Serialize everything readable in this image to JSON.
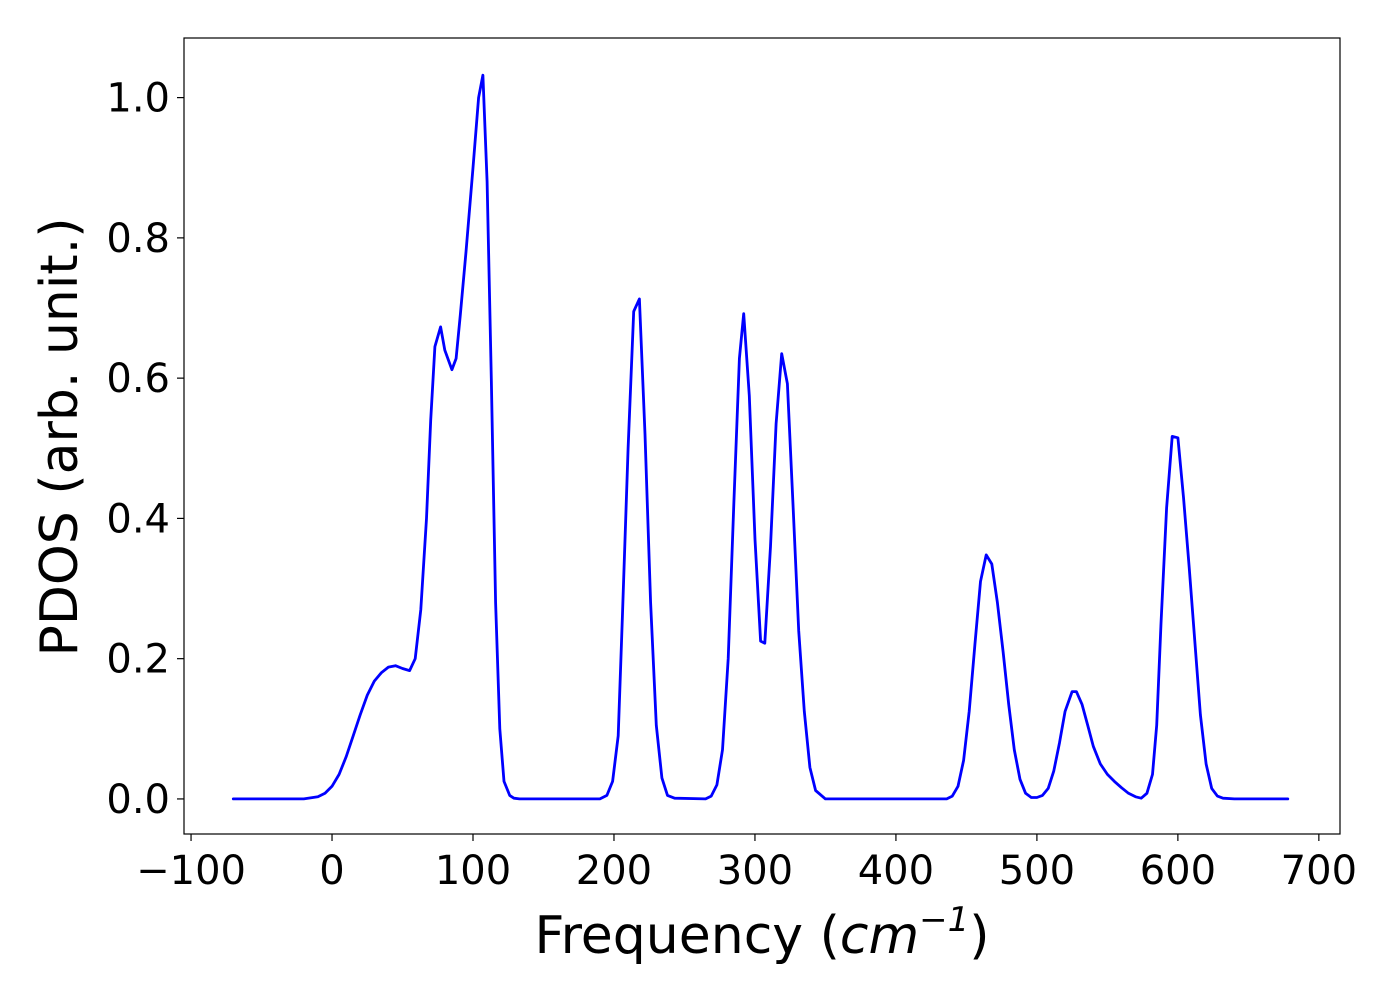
{
  "chart_data": {
    "type": "line",
    "title": "",
    "xlabel": "Frequency (",
    "xlabel_math": "cm",
    "xlabel_sup": "−1",
    "xlabel_close": ")",
    "ylabel": "PDOS (arb. unit.)",
    "xlim": [
      -105,
      715
    ],
    "ylim": [
      -0.05,
      1.085
    ],
    "grid": false,
    "legend": "none",
    "xticks": [
      {
        "value": -100,
        "label": "−100"
      },
      {
        "value": 0,
        "label": "0"
      },
      {
        "value": 100,
        "label": "100"
      },
      {
        "value": 200,
        "label": "200"
      },
      {
        "value": 300,
        "label": "300"
      },
      {
        "value": 400,
        "label": "400"
      },
      {
        "value": 500,
        "label": "500"
      },
      {
        "value": 600,
        "label": "600"
      },
      {
        "value": 700,
        "label": "700"
      }
    ],
    "yticks": [
      {
        "value": 0.0,
        "label": "0.0"
      },
      {
        "value": 0.2,
        "label": "0.2"
      },
      {
        "value": 0.4,
        "label": "0.4"
      },
      {
        "value": 0.6,
        "label": "0.6"
      },
      {
        "value": 0.8,
        "label": "0.8"
      },
      {
        "value": 1.0,
        "label": "1.0"
      }
    ],
    "series": [
      {
        "color": "#0000ff",
        "x": [
          -70,
          -20,
          -10,
          -5,
          0,
          5,
          10,
          15,
          20,
          25,
          30,
          35,
          40,
          45,
          50,
          55,
          59,
          63,
          67,
          70,
          73,
          77,
          80,
          85,
          88,
          91,
          95,
          100,
          104,
          107,
          110,
          113,
          116,
          119,
          122,
          126,
          129,
          133,
          140,
          190,
          195,
          199,
          203,
          206,
          210,
          214,
          218,
          222,
          226,
          230,
          234,
          238,
          243,
          265,
          269,
          273,
          277,
          281,
          285,
          289,
          292,
          296,
          300,
          304,
          307,
          311,
          315,
          319,
          323,
          327,
          331,
          335,
          339,
          343,
          350,
          436,
          440,
          444,
          448,
          452,
          456,
          460,
          464,
          468,
          472,
          476,
          480,
          484,
          488,
          492,
          496,
          500,
          504,
          508,
          512,
          516,
          520,
          525,
          528,
          532,
          536,
          540,
          545,
          550,
          555,
          560,
          565,
          570,
          574,
          578,
          582,
          585,
          588,
          592,
          596,
          600,
          604,
          608,
          612,
          616,
          620,
          624,
          628,
          632,
          640,
          678
        ],
        "y": [
          0,
          0,
          0.003,
          0.008,
          0.018,
          0.035,
          0.06,
          0.09,
          0.12,
          0.148,
          0.168,
          0.18,
          0.188,
          0.19,
          0.186,
          0.183,
          0.2,
          0.27,
          0.4,
          0.54,
          0.645,
          0.673,
          0.64,
          0.612,
          0.628,
          0.69,
          0.78,
          0.9,
          1.0,
          1.032,
          0.88,
          0.6,
          0.28,
          0.1,
          0.025,
          0.005,
          0.001,
          0,
          0,
          0,
          0.005,
          0.025,
          0.09,
          0.26,
          0.5,
          0.695,
          0.713,
          0.52,
          0.28,
          0.105,
          0.03,
          0.005,
          0.001,
          0,
          0.004,
          0.02,
          0.07,
          0.2,
          0.42,
          0.628,
          0.692,
          0.575,
          0.37,
          0.225,
          0.222,
          0.36,
          0.535,
          0.635,
          0.592,
          0.42,
          0.24,
          0.125,
          0.045,
          0.012,
          0,
          0,
          0.004,
          0.018,
          0.055,
          0.125,
          0.22,
          0.31,
          0.348,
          0.335,
          0.28,
          0.21,
          0.135,
          0.07,
          0.028,
          0.008,
          0.002,
          0.002,
          0.005,
          0.015,
          0.04,
          0.08,
          0.125,
          0.153,
          0.153,
          0.135,
          0.105,
          0.075,
          0.05,
          0.035,
          0.025,
          0.016,
          0.008,
          0.003,
          0.001,
          0.008,
          0.035,
          0.105,
          0.25,
          0.415,
          0.517,
          0.515,
          0.43,
          0.33,
          0.225,
          0.12,
          0.05,
          0.015,
          0.004,
          0.001,
          0,
          0
        ]
      }
    ]
  }
}
